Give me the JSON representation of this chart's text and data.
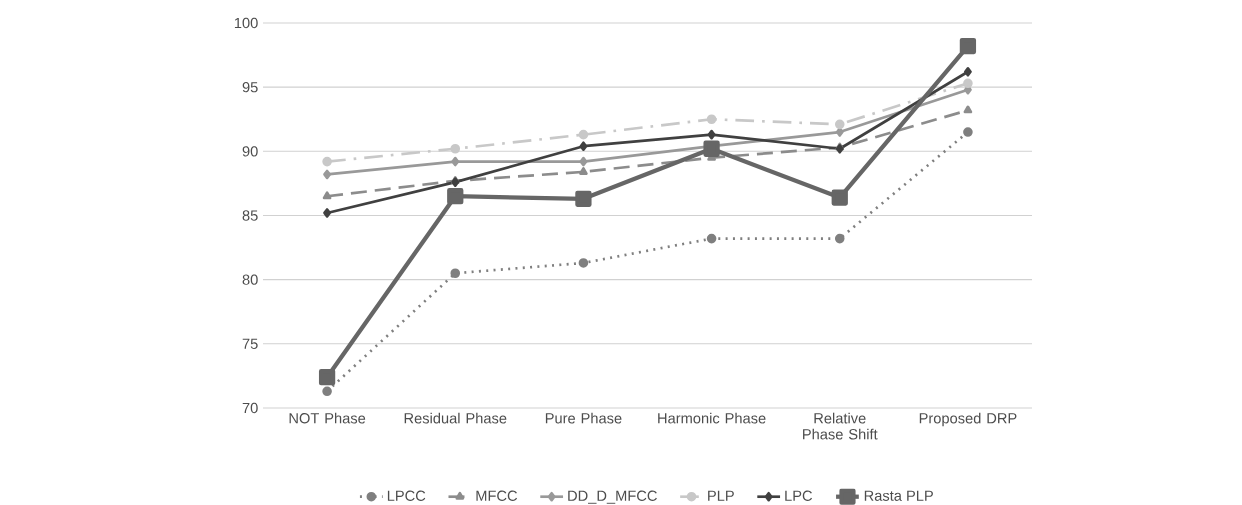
{
  "chart_data": {
    "type": "line",
    "categories": [
      "NOT Phase",
      "Residual Phase",
      "Pure Phase",
      "Harmonic Phase",
      "Relative Phase Shift",
      "Proposed DRP"
    ],
    "series": [
      {
        "name": "LPCC",
        "color": "#7f7f7f",
        "marker": "circle",
        "line_style": "dotted",
        "values": [
          71.3,
          80.5,
          81.3,
          83.2,
          83.2,
          91.5
        ]
      },
      {
        "name": "MFCC",
        "color": "#8c8c8c",
        "marker": "triangle",
        "line_style": "dashed",
        "values": [
          86.5,
          87.7,
          88.4,
          89.5,
          90.3,
          93.2
        ]
      },
      {
        "name": "DD_D_MFCC",
        "color": "#999999",
        "marker": "diamond",
        "line_style": "solid",
        "values": [
          88.2,
          89.2,
          89.2,
          90.4,
          91.5,
          94.8
        ]
      },
      {
        "name": "PLP",
        "color": "#c8c8c8",
        "marker": "circle",
        "line_style": "dashdot",
        "values": [
          89.2,
          90.2,
          91.3,
          92.5,
          92.1,
          95.3
        ]
      },
      {
        "name": "LPC",
        "color": "#404040",
        "marker": "diamond",
        "line_style": "solid",
        "values": [
          85.2,
          87.6,
          90.4,
          91.3,
          90.2,
          96.2
        ]
      },
      {
        "name": "Rasta PLP",
        "color": "#666666",
        "marker": "square",
        "line_style": "solid",
        "values": [
          72.4,
          86.5,
          86.3,
          90.2,
          86.4,
          98.2
        ]
      }
    ],
    "ylim": [
      70,
      100
    ],
    "yticks": [
      70,
      75,
      80,
      85,
      90,
      95,
      100
    ],
    "grid": "y",
    "legend": "bottom"
  }
}
